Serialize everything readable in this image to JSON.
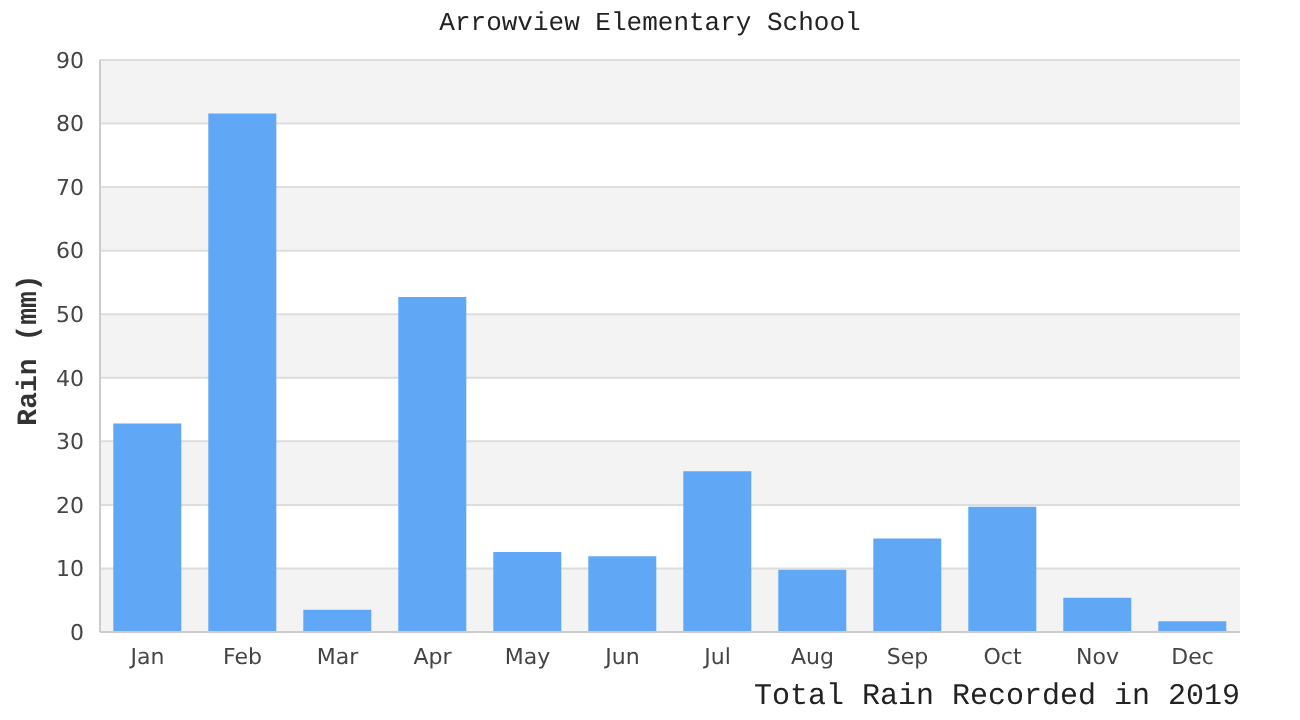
{
  "chart_data": {
    "type": "bar",
    "title": "Arrowview Elementary School",
    "xlabel": "Total Rain Recorded in 2019",
    "ylabel": "Rain (mm)",
    "categories": [
      "Jan",
      "Feb",
      "Mar",
      "Apr",
      "May",
      "Jun",
      "Jul",
      "Aug",
      "Sep",
      "Oct",
      "Nov",
      "Dec"
    ],
    "values": [
      32.8,
      81.6,
      3.5,
      52.7,
      12.6,
      11.9,
      25.3,
      9.8,
      14.7,
      19.7,
      5.4,
      1.7
    ],
    "color": "#60a8f5",
    "ylim": [
      0,
      90
    ],
    "yticks": [
      0,
      10,
      20,
      30,
      40,
      50,
      60,
      70,
      80,
      90
    ],
    "grid": "y",
    "legend": false
  }
}
